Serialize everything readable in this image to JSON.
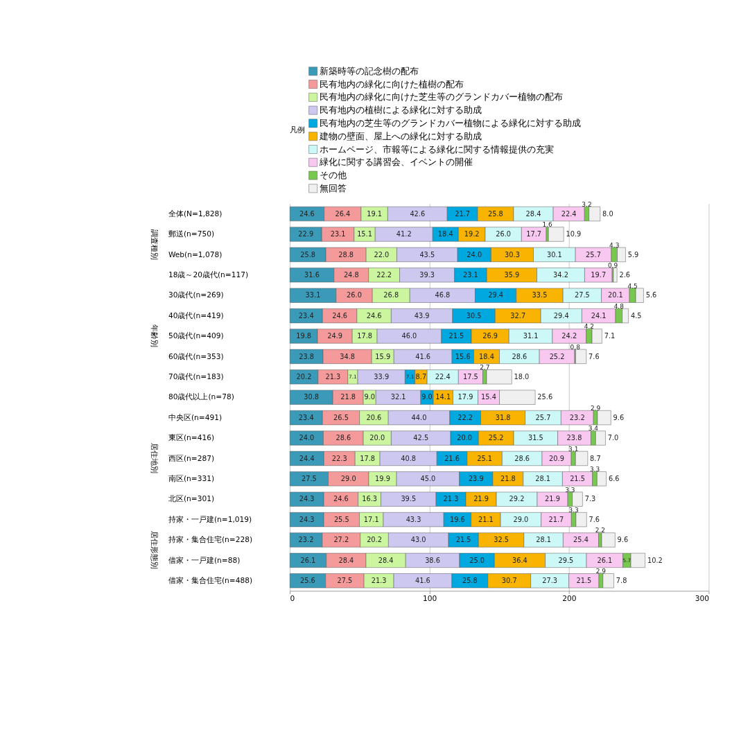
{
  "chart_data": {
    "type": "bar",
    "orientation": "horizontal",
    "stacked": true,
    "data_labels": true,
    "legend": "top",
    "legend_title": "凡例",
    "grid": "x",
    "xlim": [
      0,
      300
    ],
    "xticks": [
      0,
      100,
      200,
      300
    ],
    "annotations": [
      "調査種別",
      "年齢別",
      "居住地別",
      "居住形態別"
    ],
    "categories": [
      "全体(N=1,828)",
      "郵送(n=750)",
      "Web(n=1,078)",
      "18歳～20歳代(n=117)",
      "30歳代(n=269)",
      "40歳代(n=419)",
      "50歳代(n=409)",
      "60歳代(n=353)",
      "70歳代(n=183)",
      "80歳代以上(n=78)",
      "中央区(n=491)",
      "東区(n=416)",
      "西区(n=287)",
      "南区(n=331)",
      "北区(n=301)",
      "持家・一戸建(n=1,019)",
      "持家・集合住宅(n=228)",
      "借家・一戸建(n=88)",
      "借家・集合住宅(n=488)"
    ],
    "series": [
      {
        "name": "新築時等の記念樹の配布",
        "color": "#3a9ab8",
        "values": [
          24.6,
          22.9,
          25.8,
          31.6,
          33.1,
          23.4,
          19.8,
          23.8,
          20.2,
          30.8,
          23.4,
          24.0,
          24.4,
          27.5,
          24.3,
          24.3,
          23.2,
          26.1,
          25.6
        ],
        "value_labels": [
          "24.6",
          "22.9",
          "25.8",
          "31.6",
          "33.1",
          "23.4",
          "19.8",
          "23.8",
          "20.2",
          "30.8",
          "23.4",
          "24.0",
          "24.4",
          "27.5",
          "24.3",
          "24.3",
          "23.2",
          "26.1",
          "25.6"
        ]
      },
      {
        "name": "民有地内の緑化に向けた植樹の配布",
        "color": "#f49a9a",
        "values": [
          26.4,
          23.1,
          28.8,
          24.8,
          26.0,
          24.6,
          24.9,
          34.8,
          21.3,
          21.8,
          26.5,
          28.6,
          22.3,
          29.0,
          24.6,
          25.5,
          27.2,
          28.4,
          27.5
        ],
        "value_labels": [
          "26.4",
          "23.1",
          "28.8",
          "24.8",
          "26.0",
          "24.6",
          "24.9",
          "34.8",
          "21.3",
          "21.8",
          "26.5",
          "28.6",
          "22.3",
          "29.0",
          "24.6",
          "25.5",
          "27.2",
          "28.4",
          "27.5"
        ]
      },
      {
        "name": "民有地内の緑化に向けた芝生等のグランドカバー植物の配布",
        "color": "#ccf5a0",
        "values": [
          19.1,
          15.1,
          22.0,
          22.2,
          26.8,
          24.6,
          17.8,
          15.9,
          7.1,
          9.0,
          20.6,
          20.0,
          17.8,
          19.9,
          16.3,
          17.1,
          20.2,
          28.4,
          21.3
        ],
        "value_labels": [
          "19.1",
          "15.1",
          "22.0",
          "22.2",
          "26.8",
          "24.6",
          "17.8",
          "15.9",
          "7.1",
          "9.0",
          "20.6",
          "20.0",
          "17.8",
          "19.9",
          "16.3",
          "17.1",
          "20.2",
          "28.4",
          "21.3"
        ]
      },
      {
        "name": "民有地内の植樹による緑化に対する助成",
        "color": "#ccc8f0",
        "values": [
          42.6,
          41.2,
          43.5,
          39.3,
          46.8,
          43.9,
          46.0,
          41.6,
          33.9,
          32.1,
          44.0,
          42.5,
          40.8,
          45.0,
          39.5,
          43.3,
          43.0,
          38.6,
          41.6
        ],
        "value_labels": [
          "42.6",
          "41.2",
          "43.5",
          "39.3",
          "46.8",
          "43.9",
          "46.0",
          "41.6",
          "33.9",
          "32.1",
          "44.0",
          "42.5",
          "40.8",
          "45.0",
          "39.5",
          "43.3",
          "43.0",
          "38.6",
          "41.6"
        ]
      },
      {
        "name": "民有地内の芝生等のグランドカバー植物による緑化に対する助成",
        "color": "#00a8e0",
        "values": [
          21.7,
          18.4,
          24.0,
          23.1,
          29.4,
          30.5,
          21.5,
          15.6,
          7.1,
          9.0,
          22.2,
          20.0,
          21.6,
          23.9,
          21.3,
          19.6,
          21.5,
          25.0,
          25.8
        ],
        "value_labels": [
          "21.7",
          "18.4",
          "24.0",
          "23.1",
          "29.4",
          "30.5",
          "21.5",
          "15.6",
          "7.1",
          "9.0",
          "22.2",
          "20.0",
          "21.6",
          "23.9",
          "21.3",
          "19.6",
          "21.5",
          "25.0",
          "25.8"
        ]
      },
      {
        "name": "建物の壁面、屋上への緑化に対する助成",
        "color": "#f8b400",
        "values": [
          25.8,
          19.2,
          30.3,
          35.9,
          33.5,
          32.7,
          26.9,
          18.4,
          8.7,
          14.1,
          31.8,
          25.2,
          25.1,
          21.8,
          21.9,
          21.1,
          32.5,
          36.4,
          30.7
        ],
        "value_labels": [
          "25.8",
          "19.2",
          "30.3",
          "35.9",
          "33.5",
          "32.7",
          "26.9",
          "18.4",
          "8.7",
          "14.1",
          "31.8",
          "25.2",
          "25.1",
          "21.8",
          "21.9",
          "21.1",
          "32.5",
          "36.4",
          "30.7"
        ]
      },
      {
        "name": "ホームページ、市報等による緑化に関する情報提供の充実",
        "color": "#ccf8f8",
        "values": [
          28.4,
          26.0,
          30.1,
          34.2,
          27.5,
          29.4,
          31.1,
          28.6,
          22.4,
          17.9,
          25.7,
          31.5,
          28.6,
          28.1,
          29.2,
          29.0,
          28.1,
          29.5,
          27.3
        ],
        "value_labels": [
          "28.4",
          "26.0",
          "30.1",
          "34.2",
          "27.5",
          "29.4",
          "31.1",
          "28.6",
          "22.4",
          "17.9",
          "25.7",
          "31.5",
          "28.6",
          "28.1",
          "29.2",
          "29.0",
          "28.1",
          "29.5",
          "27.3"
        ]
      },
      {
        "name": "緑化に関する講習会、イベントの開催",
        "color": "#f8c8f0",
        "values": [
          22.4,
          17.7,
          25.7,
          19.7,
          20.1,
          24.1,
          24.2,
          25.2,
          17.5,
          15.4,
          23.2,
          23.8,
          20.9,
          21.5,
          21.9,
          21.7,
          25.4,
          26.1,
          21.5
        ],
        "value_labels": [
          "22.4",
          "17.7",
          "25.7",
          "19.7",
          "20.1",
          "24.1",
          "24.2",
          "25.2",
          "17.5",
          "15.4",
          "23.2",
          "23.8",
          "20.9",
          "21.5",
          "21.9",
          "21.7",
          "25.4",
          "26.1",
          "21.5"
        ]
      },
      {
        "name": "その他",
        "color": "#78c850",
        "values": [
          3.2,
          1.6,
          4.3,
          0.9,
          4.5,
          4.8,
          4.2,
          0.8,
          2.7,
          null,
          2.9,
          3.4,
          3.1,
          3.3,
          3.3,
          3.3,
          2.2,
          5.7,
          2.9
        ],
        "value_labels": [
          "3.2",
          "1.6",
          "4.3",
          "0.9",
          "4.5",
          "4.8",
          "4.2",
          "0.8",
          "2.7",
          null,
          "2.9",
          "3.4",
          "3.1",
          "3.3",
          "3.3",
          "3.3",
          "2.2",
          "5.7",
          "2.9"
        ]
      },
      {
        "name": "無回答",
        "color": "#f0f0f0",
        "values": [
          8.0,
          10.9,
          5.9,
          2.6,
          5.6,
          4.5,
          7.1,
          7.6,
          18.0,
          25.6,
          9.6,
          7.0,
          8.7,
          6.6,
          7.3,
          7.6,
          9.6,
          10.2,
          7.8
        ],
        "value_labels": [
          "8.0",
          "10.9",
          "5.9",
          "2.6",
          "5.6",
          "4.5",
          "7.1",
          "7.6",
          "18.0",
          "25.6",
          "9.6",
          "7.0",
          "8.7",
          "6.6",
          "7.3",
          "7.6",
          "9.6",
          "10.2",
          "7.8"
        ]
      }
    ]
  }
}
